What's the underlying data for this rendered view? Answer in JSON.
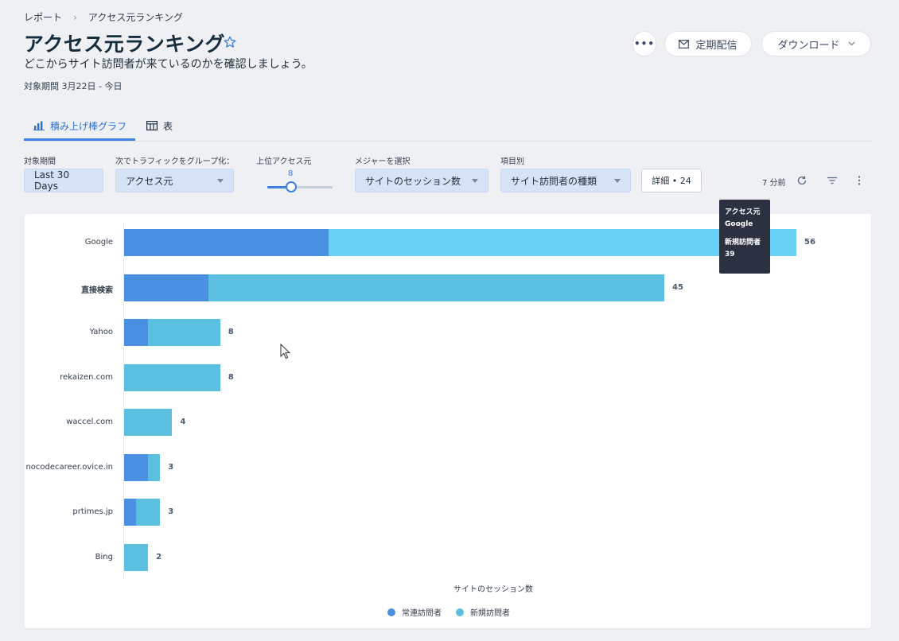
{
  "breadcrumb": {
    "parent": "レポート",
    "current": "アクセス元ランキング"
  },
  "header": {
    "title": "アクセス元ランキング",
    "subtitle": "どこからサイト訪問者が来ているのかを確認しましょう。",
    "period": "対象期間 3月22日 - 今日",
    "more_label": "•••",
    "schedule_label": "定期配信",
    "download_label": "ダウンロード"
  },
  "tabs": [
    {
      "label": "積み上げ棒グラフ",
      "active": true
    },
    {
      "label": "表",
      "active": false
    }
  ],
  "filters": {
    "period": {
      "label": "対象期間",
      "value": "Last 30 Days"
    },
    "group": {
      "label": "次でトラフィックをグループ化：",
      "value": "アクセス元"
    },
    "top": {
      "label": "上位アクセス元",
      "value": "8",
      "max_fraction": 0.3
    },
    "measure": {
      "label": "メジャーを選択",
      "value": "サイトのセッション数"
    },
    "breakdown": {
      "label": "項目別",
      "value": "サイト訪問者の種類"
    },
    "details_label": "詳細 • 24",
    "updated": "7 分前"
  },
  "tooltip": {
    "source_label": "アクセス元",
    "source_value": "Google",
    "metric_label": "新規訪問者",
    "metric_value": "39"
  },
  "colors": {
    "returning": "#4a90e2",
    "new": "#5bc0e0",
    "new_highlight": "#6ad3f5"
  },
  "chart_data": {
    "type": "bar",
    "orientation": "horizontal",
    "stacked": true,
    "categories": [
      "Google",
      "直接検索",
      "Yahoo",
      "rekaizen.com",
      "waccel.com",
      "nocodecareer.ovice.in",
      "prtimes.jp",
      "Bing"
    ],
    "series": [
      {
        "name": "常連訪問者",
        "values": [
          17,
          7,
          2,
          0,
          0,
          2,
          1,
          0
        ]
      },
      {
        "name": "新規訪問者",
        "values": [
          39,
          38,
          6,
          8,
          4,
          1,
          2,
          2
        ]
      }
    ],
    "totals": [
      "56",
      "45",
      "8",
      "8",
      "4",
      "3",
      "3",
      "2"
    ],
    "xlabel": "サイトのセッション数",
    "xlim": [
      0,
      56
    ],
    "legend_position": "bottom"
  }
}
